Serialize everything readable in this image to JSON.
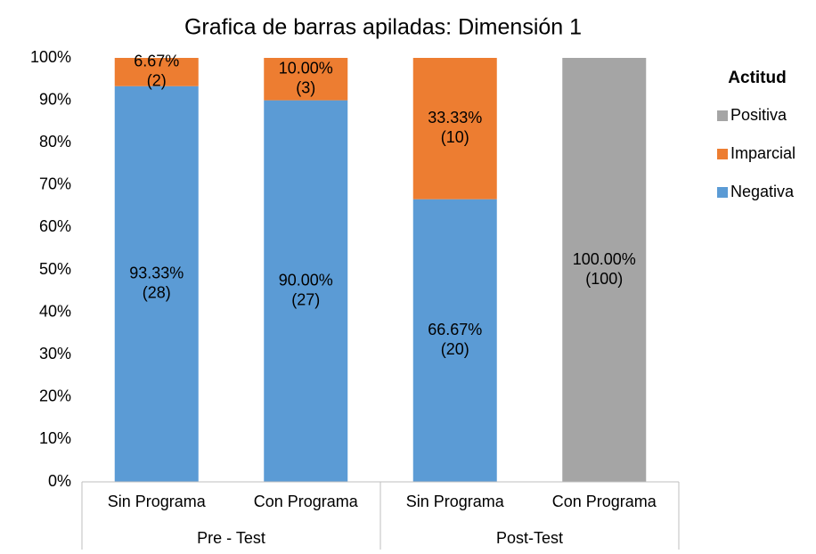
{
  "chart_data": {
    "type": "bar",
    "stacked": true,
    "title": "Grafica de barras apiladas: Dimensión 1",
    "categories": [
      "Sin Programa",
      "Con Programa",
      "Sin Programa",
      "Con Programa"
    ],
    "groups": [
      {
        "label": "Pre - Test",
        "size": 2
      },
      {
        "label": "Post-Test",
        "size": 2
      }
    ],
    "legend_title": "Actitud",
    "legend_position": "right",
    "series": [
      {
        "name": "Negativa",
        "color": "#5b9bd5",
        "values": [
          93.33,
          90.0,
          66.67,
          null
        ],
        "value_labels": [
          "93.33%",
          "90.00%",
          "66.67%",
          null
        ],
        "count_labels": [
          "(28)",
          "(27)",
          "(20)",
          null
        ]
      },
      {
        "name": "Imparcial",
        "color": "#ed7d31",
        "values": [
          6.67,
          10.0,
          33.33,
          null
        ],
        "value_labels": [
          "6.67%",
          "10.00%",
          "33.33%",
          null
        ],
        "count_labels": [
          "(2)",
          "(3)",
          "(10)",
          null
        ]
      },
      {
        "name": "Positiva",
        "color": "#a5a5a5",
        "values": [
          null,
          null,
          null,
          100
        ],
        "value_labels": [
          null,
          null,
          null,
          "100.00%"
        ],
        "count_labels": [
          null,
          null,
          null,
          "(100)"
        ]
      }
    ],
    "ylim": [
      0,
      100
    ],
    "yticks": [
      {
        "value": 0,
        "label": "0%"
      },
      {
        "value": 10,
        "label": "10%"
      },
      {
        "value": 20,
        "label": "20%"
      },
      {
        "value": 30,
        "label": "30%"
      },
      {
        "value": 40,
        "label": "40%"
      },
      {
        "value": 50,
        "label": "50%"
      },
      {
        "value": 60,
        "label": "60%"
      },
      {
        "value": 70,
        "label": "70%"
      },
      {
        "value": 80,
        "label": "80%"
      },
      {
        "value": 90,
        "label": "90%"
      },
      {
        "value": 100,
        "label": "100%"
      }
    ],
    "grid": false
  }
}
